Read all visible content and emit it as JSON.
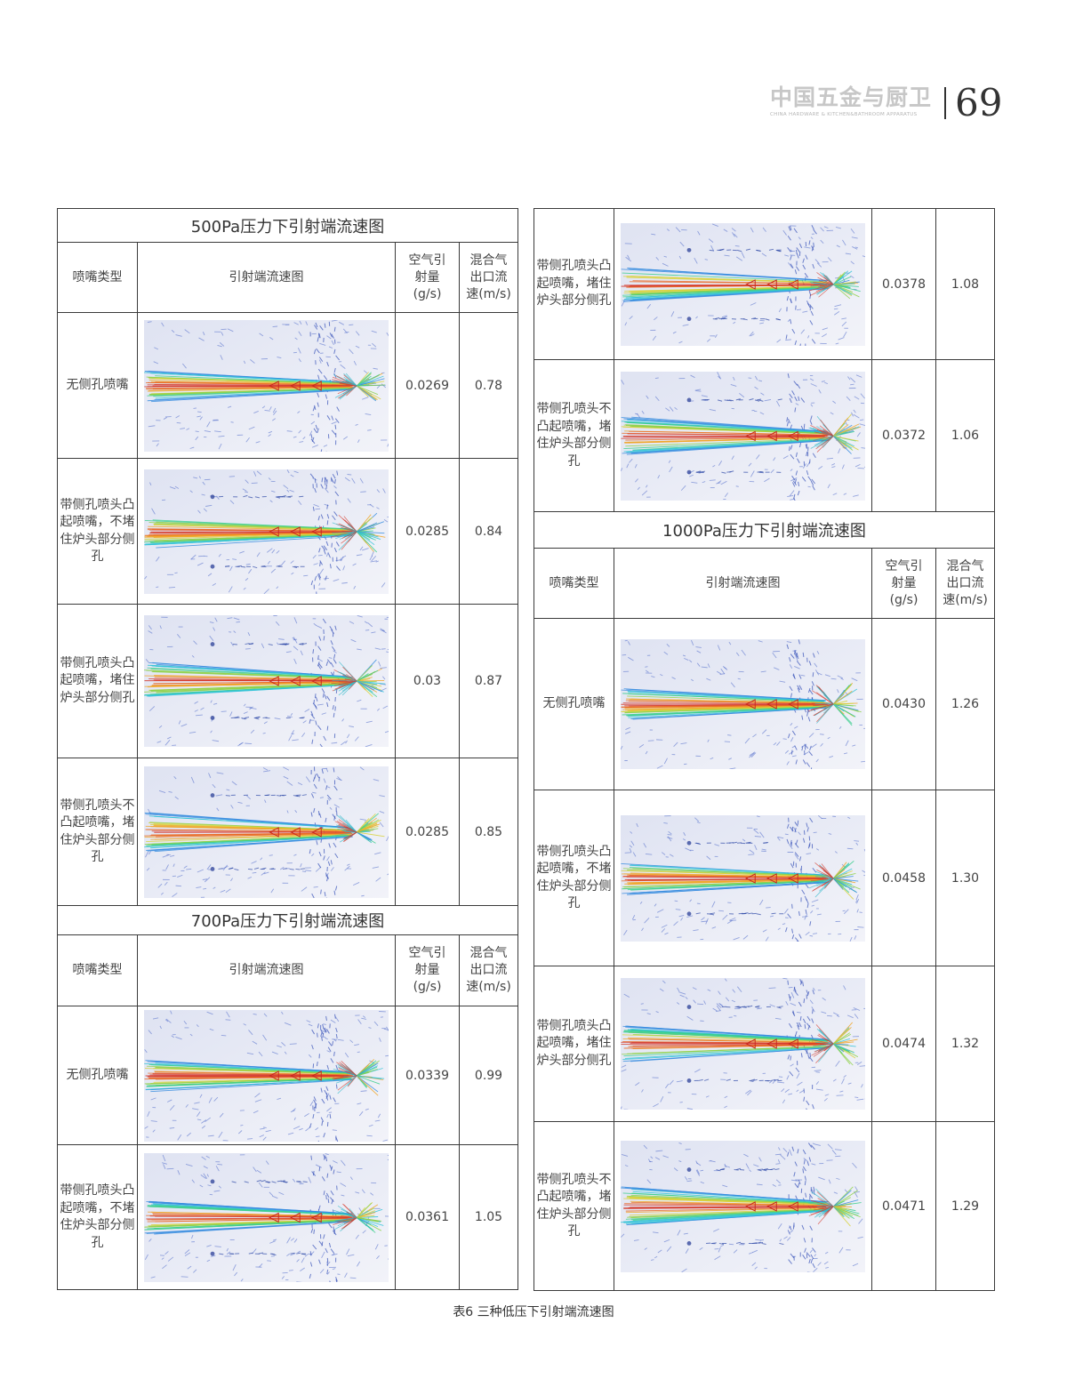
{
  "header": {
    "logo_main": "中国五金与厨卫",
    "logo_sub": "CHINA HARDWARE & KITCHEN&BATHROOM APPARATUS",
    "page_number": "69"
  },
  "columns": {
    "type": "喷嘴类型",
    "image": "引射端流速图",
    "air": "空气引射量(g/s)",
    "speed": "混合气出口流速(m/s)"
  },
  "sections": {
    "p500": {
      "title": "500Pa压力下引射端流速图",
      "rows": [
        {
          "type": "无侧孔喷嘴",
          "air": "0.0269",
          "speed": "0.78"
        },
        {
          "type": "带侧孔喷头凸起喷嘴，不堵住炉头部分侧孔",
          "air": "0.0285",
          "speed": "0.84"
        },
        {
          "type": "带侧孔喷头凸起喷嘴，堵住炉头部分侧孔",
          "air": "0.03",
          "speed": "0.87"
        },
        {
          "type": "带侧孔喷头不凸起喷嘴，堵住炉头部分侧孔",
          "air": "0.0285",
          "speed": "0.85"
        }
      ]
    },
    "p700": {
      "title": "700Pa压力下引射端流速图",
      "rows": [
        {
          "type": "无侧孔喷嘴",
          "air": "0.0339",
          "speed": "0.99"
        },
        {
          "type": "带侧孔喷头凸起喷嘴，不堵住炉头部分侧孔",
          "air": "0.0361",
          "speed": "1.05"
        },
        {
          "type": "带侧孔喷头凸起喷嘴，堵住炉头部分侧孔",
          "air": "0.0378",
          "speed": "1.08"
        },
        {
          "type": "带侧孔喷头不凸起喷嘴，堵住炉头部分侧孔",
          "air": "0.0372",
          "speed": "1.06"
        }
      ]
    },
    "p1000": {
      "title": "1000Pa压力下引射端流速图",
      "rows": [
        {
          "type": "无侧孔喷嘴",
          "air": "0.0430",
          "speed": "1.26"
        },
        {
          "type": "带侧孔喷头凸起喷嘴，不堵住炉头部分侧孔",
          "air": "0.0458",
          "speed": "1.30"
        },
        {
          "type": "带侧孔喷头凸起喷嘴，堵住炉头部分侧孔",
          "air": "0.0474",
          "speed": "1.32"
        },
        {
          "type": "带侧孔喷头不凸起喷嘴，堵住炉头部分侧孔",
          "air": "0.0471",
          "speed": "1.29"
        }
      ]
    }
  },
  "caption": "表6 三种低压下引射端流速图",
  "colors": {
    "border": "#3a3a3a",
    "image_bg": "#e9ecf6",
    "vector_blue": "#3f5fc2",
    "vector_red": "#d63a2c"
  }
}
